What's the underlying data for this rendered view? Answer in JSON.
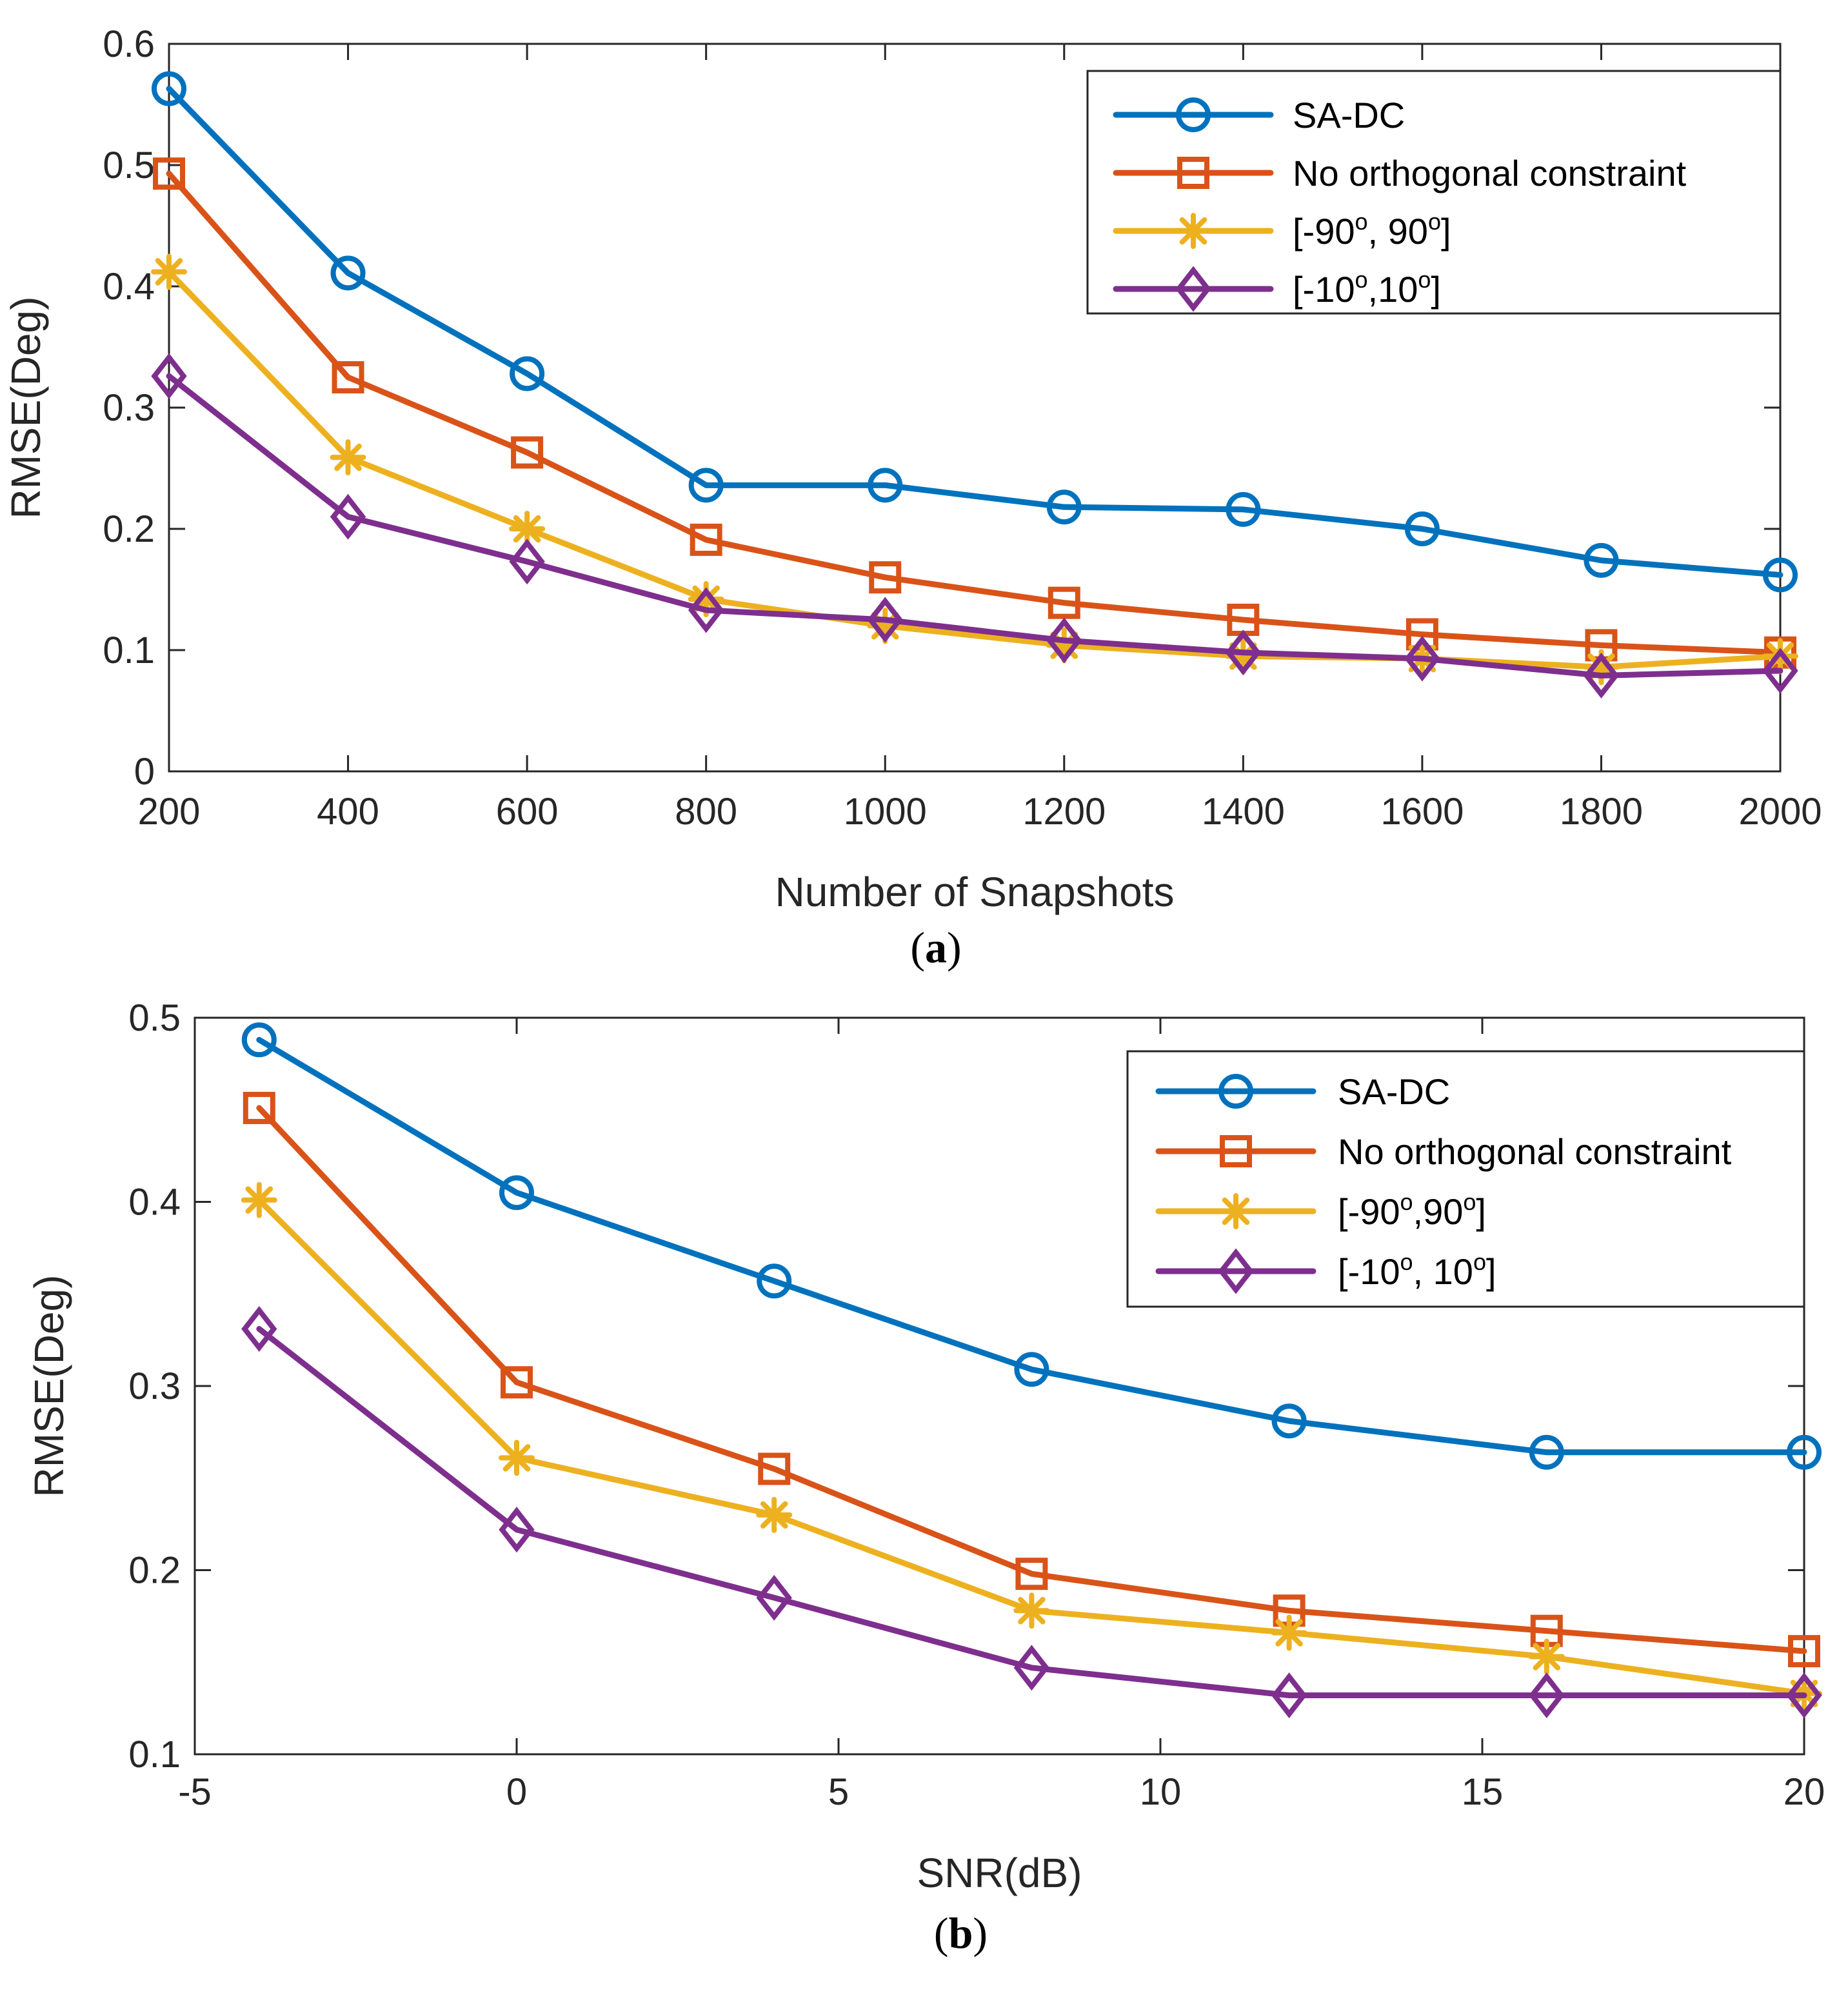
{
  "colors": {
    "sa_dc": "#0072BD",
    "no_orth": "#D95319",
    "range90": "#EDB120",
    "range10": "#7E2F8E",
    "axis": "#262626"
  },
  "chart_data": [
    {
      "id": "a",
      "type": "line",
      "caption": {
        "open": "(",
        "letter": "a",
        "close": ")"
      },
      "xlabel": "Number of Snapshots",
      "ylabel": "RMSE(Deg)",
      "xlim": [
        200,
        2000
      ],
      "ylim": [
        0,
        0.6
      ],
      "xticks": [
        200,
        400,
        600,
        800,
        1000,
        1200,
        1400,
        1600,
        1800,
        2000
      ],
      "xtick_labels": [
        "200",
        "400",
        "600",
        "800",
        "1000",
        "1200",
        "1400",
        "1600",
        "1800",
        "2000"
      ],
      "yticks": [
        0,
        0.1,
        0.2,
        0.3,
        0.4,
        0.5,
        0.6
      ],
      "ytick_labels": [
        "0",
        "0.1",
        "0.2",
        "0.3",
        "0.4",
        "0.5",
        "0.6"
      ],
      "legend_position": "top-right",
      "x": [
        200,
        400,
        600,
        800,
        1000,
        1200,
        1400,
        1600,
        1800,
        2000
      ],
      "series": [
        {
          "key": "sa_dc",
          "marker": "circle",
          "color_key": "sa_dc",
          "legend": {
            "pre": "SA-DC"
          },
          "values": [
            0.563,
            0.411,
            0.328,
            0.236,
            0.236,
            0.218,
            0.216,
            0.2,
            0.174,
            0.162
          ]
        },
        {
          "key": "no_orth",
          "marker": "square",
          "color_key": "no_orth",
          "legend": {
            "pre": "No orthogonal constraint"
          },
          "values": [
            0.493,
            0.325,
            0.263,
            0.191,
            0.16,
            0.139,
            0.125,
            0.113,
            0.104,
            0.098
          ]
        },
        {
          "key": "range90",
          "marker": "asterisk",
          "color_key": "range90",
          "legend": {
            "pre": "[-90",
            "sup1": "o",
            "mid": ", 90",
            "sup2": "o",
            "post": "]"
          },
          "values": [
            0.412,
            0.259,
            0.2,
            0.142,
            0.12,
            0.104,
            0.095,
            0.093,
            0.086,
            0.095
          ]
        },
        {
          "key": "range10",
          "marker": "diamond",
          "color_key": "range10",
          "legend": {
            "pre": "[-10",
            "sup1": "o",
            "mid": ",10",
            "sup2": "o",
            "post": "]"
          },
          "values": [
            0.326,
            0.21,
            0.173,
            0.133,
            0.125,
            0.108,
            0.098,
            0.093,
            0.079,
            0.083
          ]
        }
      ]
    },
    {
      "id": "b",
      "type": "line",
      "caption": {
        "open": "(",
        "letter": "b",
        "close": ")"
      },
      "xlabel": "SNR(dB)",
      "ylabel": "RMSE(Deg)",
      "xlim": [
        -5,
        20
      ],
      "ylim": [
        0.1,
        0.5
      ],
      "xticks": [
        -5,
        0,
        5,
        10,
        15,
        20
      ],
      "xtick_labels": [
        "-5",
        "0",
        "5",
        "10",
        "15",
        "20"
      ],
      "yticks": [
        0.1,
        0.2,
        0.3,
        0.4,
        0.5
      ],
      "ytick_labels": [
        "0.1",
        "0.2",
        "0.3",
        "0.4",
        "0.5"
      ],
      "legend_position": "top-right",
      "x": [
        -4,
        0,
        4,
        8,
        12,
        16,
        20
      ],
      "series": [
        {
          "key": "sa_dc",
          "marker": "circle",
          "color_key": "sa_dc",
          "legend": {
            "pre": "SA-DC"
          },
          "values": [
            0.488,
            0.405,
            0.357,
            0.309,
            0.281,
            0.264,
            0.264
          ]
        },
        {
          "key": "no_orth",
          "marker": "square",
          "color_key": "no_orth",
          "legend": {
            "pre": "No orthogonal constraint"
          },
          "values": [
            0.451,
            0.302,
            0.255,
            0.198,
            0.178,
            0.167,
            0.156
          ]
        },
        {
          "key": "range90",
          "marker": "asterisk",
          "color_key": "range90",
          "legend": {
            "pre": "[-90",
            "sup1": "o",
            "mid": ",90",
            "sup2": "o",
            "post": "]"
          },
          "values": [
            0.401,
            0.261,
            0.23,
            0.178,
            0.166,
            0.153,
            0.133
          ]
        },
        {
          "key": "range10",
          "marker": "diamond",
          "color_key": "range10",
          "legend": {
            "pre": "[-10",
            "sup1": "o",
            "mid": ", 10",
            "sup2": "o",
            "post": "]"
          },
          "values": [
            0.331,
            0.222,
            0.185,
            0.147,
            0.132,
            0.132,
            0.132
          ]
        }
      ]
    }
  ]
}
